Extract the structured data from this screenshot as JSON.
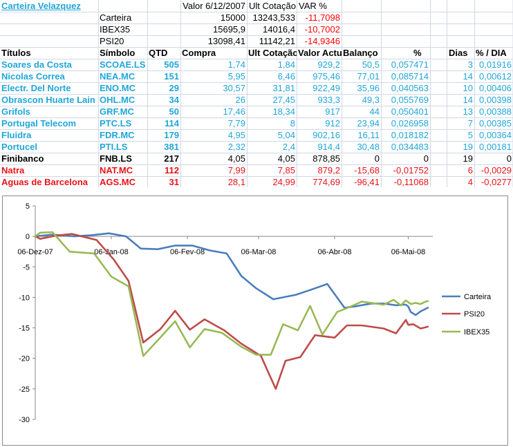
{
  "sheet": {
    "title": "Carteira Velazquez",
    "summary_headers": [
      "Valor 6/12/2007",
      "Ult Cotação",
      "VAR %"
    ],
    "summary": [
      {
        "name": "Carteira",
        "valor": "15000",
        "ult": "13243,533",
        "var": "-11,7098"
      },
      {
        "name": "IBEX35",
        "valor": "15695,9",
        "ult": "14016,4",
        "var": "-10,7002"
      },
      {
        "name": "PSI20",
        "valor": "13098,41",
        "ult": "11142,21",
        "var": "-14,9346"
      }
    ],
    "headers": [
      "Títulos",
      "Símbolo",
      "QTD",
      "Compra",
      "Ult Cotação",
      "Valor Actual",
      "Balanço",
      "%",
      "Dias",
      "% / DIA"
    ],
    "rows": [
      {
        "titulo": "Soares da Costa",
        "simbolo": "SCOAE.LS",
        "qtd": "505",
        "compra": "1,74",
        "ult": "1,84",
        "valor": "929,2",
        "balanco": "50,5",
        "pct": "0,057471",
        "dias": "3",
        "pdia": "0,01916",
        "color": "#1FA6D8"
      },
      {
        "titulo": "Nicolas Correa",
        "simbolo": "NEA.MC",
        "qtd": "151",
        "compra": "5,95",
        "ult": "6,46",
        "valor": "975,46",
        "balanco": "77,01",
        "pct": "0,085714",
        "dias": "14",
        "pdia": "0,00612",
        "color": "#1FA6D8"
      },
      {
        "titulo": "Electr. Del Norte",
        "simbolo": "ENO.MC",
        "qtd": "29",
        "compra": "30,57",
        "ult": "31,81",
        "valor": "922,49",
        "balanco": "35,96",
        "pct": "0,040563",
        "dias": "10",
        "pdia": "0,00406",
        "color": "#1FA6D8"
      },
      {
        "titulo": "Obrascon Huarte Lain",
        "simbolo": "OHL.MC",
        "qtd": "34",
        "compra": "26",
        "ult": "27,45",
        "valor": "933,3",
        "balanco": "49,3",
        "pct": "0,055769",
        "dias": "14",
        "pdia": "0,00398",
        "color": "#1FA6D8"
      },
      {
        "titulo": "Grifols",
        "simbolo": "GRF.MC",
        "qtd": "50",
        "compra": "17,46",
        "ult": "18,34",
        "valor": "917",
        "balanco": "44",
        "pct": "0,050401",
        "dias": "13",
        "pdia": "0,00388",
        "color": "#1FA6D8"
      },
      {
        "titulo": "Portugal Telecom",
        "simbolo": "PTC.LS",
        "qtd": "114",
        "compra": "7,79",
        "ult": "8",
        "valor": "912",
        "balanco": "23,94",
        "pct": "0,026958",
        "dias": "7",
        "pdia": "0,00385",
        "color": "#1FA6D8"
      },
      {
        "titulo": "Fluidra",
        "simbolo": "FDR.MC",
        "qtd": "179",
        "compra": "4,95",
        "ult": "5,04",
        "valor": "902,16",
        "balanco": "16,11",
        "pct": "0,018182",
        "dias": "5",
        "pdia": "0,00364",
        "color": "#1FA6D8"
      },
      {
        "titulo": "Portucel",
        "simbolo": "PTI.LS",
        "qtd": "381",
        "compra": "2,32",
        "ult": "2,4",
        "valor": "914,4",
        "balanco": "30,48",
        "pct": "0,034483",
        "dias": "19",
        "pdia": "0,00181",
        "color": "#1FA6D8"
      },
      {
        "titulo": "Finibanco",
        "simbolo": "FNB.LS",
        "qtd": "217",
        "compra": "4,05",
        "ult": "4,05",
        "valor": "878,85",
        "balanco": "0",
        "pct": "0",
        "dias": "19",
        "pdia": "0",
        "color": "#000000"
      },
      {
        "titulo": "Natra",
        "simbolo": "NAT.MC",
        "qtd": "112",
        "compra": "7,99",
        "ult": "7,85",
        "valor": "879,2",
        "balanco": "-15,68",
        "pct": "-0,01752",
        "dias": "6",
        "pdia": "-0,0029",
        "color": "#E8131A"
      },
      {
        "titulo": "Aguas de Barcelona",
        "simbolo": "AGS.MC",
        "qtd": "31",
        "compra": "28,1",
        "ult": "24,99",
        "valor": "774,69",
        "balanco": "-96,41",
        "pct": "-0,11068",
        "dias": "4",
        "pdia": "-0,0277",
        "color": "#E8131A"
      }
    ]
  },
  "colors": {
    "carteira": "#4A7EBB",
    "psi20": "#BE4B48",
    "ibex35": "#98B954",
    "blue_text": "#1FA6D8",
    "red_text": "#E8131A",
    "grid": "#D0D7E5"
  },
  "chart_data": {
    "type": "line",
    "title": "",
    "xlabel": "",
    "ylabel": "",
    "ylim": [
      -30,
      5
    ],
    "yticks": [
      5,
      0,
      -5,
      -10,
      -15,
      -20,
      -25,
      -30
    ],
    "x_tick_labels": [
      {
        "label": "06-Dez-07",
        "t": 0
      },
      {
        "label": "06-Jan-08",
        "t": 31
      },
      {
        "label": "06-Fev-08",
        "t": 62
      },
      {
        "label": "06-Mar-08",
        "t": 91
      },
      {
        "label": "06-Abr-08",
        "t": 122
      },
      {
        "label": "06-Mai-08",
        "t": 152
      }
    ],
    "xlim": [
      0,
      162
    ],
    "series": [
      {
        "name": "Carteira",
        "t": [
          0,
          7,
          16,
          23,
          30,
          37,
          43,
          50,
          57,
          64,
          71,
          78,
          84,
          90,
          97,
          106,
          112,
          119,
          126,
          130,
          137,
          142,
          147,
          150,
          151,
          152,
          153,
          155,
          157,
          158,
          160
        ],
        "values": [
          0,
          0.3,
          0,
          0.2,
          0.5,
          0,
          -2,
          -2.1,
          -1.5,
          -1.5,
          -2.3,
          -2.8,
          -6.5,
          -8.5,
          -10.3,
          -9.6,
          -8.8,
          -7.8,
          -11.7,
          -11.5,
          -11,
          -11,
          -11.3,
          -11.2,
          -11.2,
          -11.5,
          -12.4,
          -12.9,
          -12.3,
          -12.1,
          -11.7
        ]
      },
      {
        "name": "PSI20",
        "t": [
          0,
          2,
          8,
          15,
          25,
          32,
          38,
          44,
          51,
          57,
          63,
          69,
          77,
          84,
          92,
          98,
          102,
          108,
          114,
          118,
          122,
          127,
          133,
          142,
          147,
          151,
          152,
          154,
          157,
          159,
          160
        ],
        "values": [
          0,
          -0.4,
          0.1,
          0.4,
          -0.6,
          -3.8,
          -7.3,
          -17.4,
          -15.2,
          -12.2,
          -15.3,
          -13.6,
          -15.4,
          -17.6,
          -19.6,
          -25,
          -20.4,
          -19.8,
          -16.2,
          -16.4,
          -16.6,
          -14.6,
          -14.6,
          -15.1,
          -15.9,
          -13.7,
          -14.5,
          -14.4,
          -15.1,
          -14.9,
          -14.8
        ]
      },
      {
        "name": "IBEX35",
        "t": [
          0,
          2,
          7,
          14,
          24,
          31,
          38,
          44,
          50,
          57,
          63,
          69,
          76,
          84,
          90,
          96,
          101,
          107,
          112,
          117,
          123,
          128,
          133,
          142,
          146,
          149,
          151,
          153,
          155,
          157,
          159,
          160
        ],
        "values": [
          0,
          0.6,
          0.7,
          -2.5,
          -2.8,
          -6.6,
          -8.2,
          -19.6,
          -17,
          -13.9,
          -18.2,
          -15.2,
          -15.8,
          -18.1,
          -19.4,
          -19.4,
          -14.4,
          -15.4,
          -11.4,
          -16.1,
          -12.4,
          -11.6,
          -10.7,
          -11.2,
          -10.4,
          -11.3,
          -10.5,
          -11.1,
          -10.9,
          -11.1,
          -10.7,
          -10.6
        ]
      }
    ],
    "legend": [
      "Carteira",
      "PSI20",
      "IBEX35"
    ],
    "legend_position": "right",
    "grid": false
  }
}
